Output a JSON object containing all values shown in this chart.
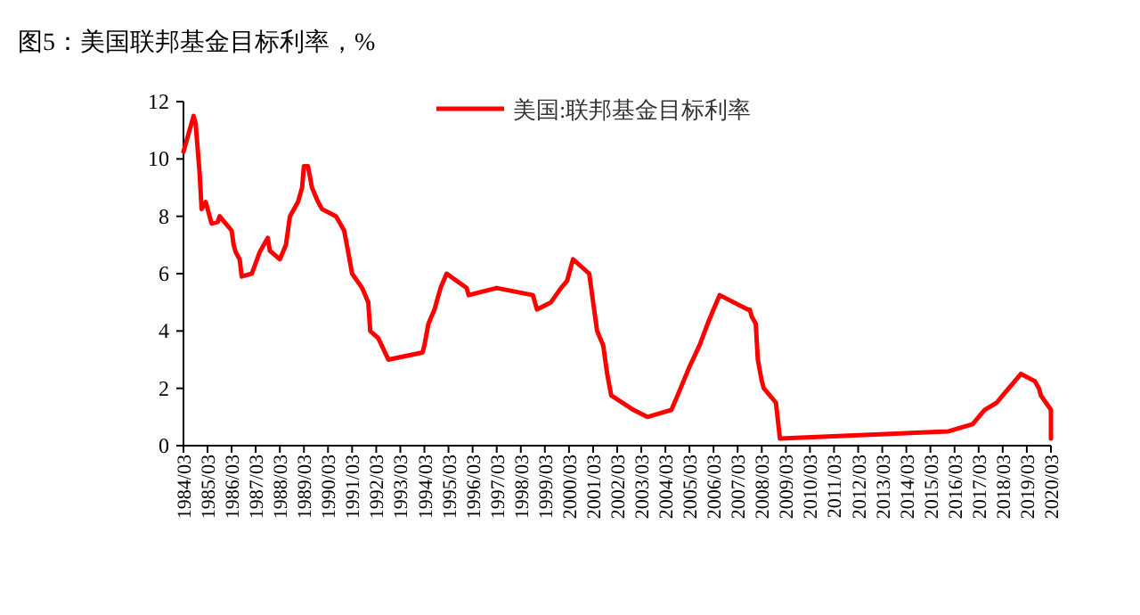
{
  "chart_data": {
    "type": "line",
    "title": "图5：美国联邦基金目标利率，%",
    "series": [
      {
        "name": "美国:联邦基金目标利率",
        "color": "#ff0000",
        "x": [
          "1984-03",
          "1984-08",
          "1984-09",
          "1984-11",
          "1984-12",
          "1985-02",
          "1985-05",
          "1985-08",
          "1985-09",
          "1986-03",
          "1986-04",
          "1986-05",
          "1986-07",
          "1986-08",
          "1987-01",
          "1987-05",
          "1987-09",
          "1987-10",
          "1988-03",
          "1988-06",
          "1988-08",
          "1988-12",
          "1989-02",
          "1989-03",
          "1989-05",
          "1989-07",
          "1989-10",
          "1989-12",
          "1990-07",
          "1990-11",
          "1991-01",
          "1991-03",
          "1991-08",
          "1991-11",
          "1991-12",
          "1992-04",
          "1992-09",
          "1994-02",
          "1994-03",
          "1994-05",
          "1994-08",
          "1994-11",
          "1995-02",
          "1995-07",
          "1995-12",
          "1996-01",
          "1997-03",
          "1998-09",
          "1998-11",
          "1999-06",
          "1999-11",
          "2000-02",
          "2000-05",
          "2001-01",
          "2001-05",
          "2001-08",
          "2001-10",
          "2001-12",
          "2002-11",
          "2003-06",
          "2004-06",
          "2004-09",
          "2004-12",
          "2005-03",
          "2005-08",
          "2005-12",
          "2006-03",
          "2006-06",
          "2007-08",
          "2007-09",
          "2007-10",
          "2007-12",
          "2008-01",
          "2008-03",
          "2008-04",
          "2008-10",
          "2008-12",
          "2015-12",
          "2016-12",
          "2017-03",
          "2017-06",
          "2017-12",
          "2018-03",
          "2018-06",
          "2018-09",
          "2018-12",
          "2019-07",
          "2019-09",
          "2019-10",
          "2020-03",
          "2020-03"
        ],
        "values": [
          10.25,
          11.5,
          11.25,
          9.5,
          8.25,
          8.5,
          7.75,
          7.8,
          8.0,
          7.5,
          7.0,
          6.75,
          6.5,
          5.9,
          6.0,
          6.75,
          7.25,
          6.8,
          6.5,
          7.0,
          8.0,
          8.5,
          9.0,
          9.75,
          9.75,
          9.0,
          8.5,
          8.25,
          8.0,
          7.5,
          6.75,
          6.0,
          5.5,
          5.0,
          4.0,
          3.75,
          3.0,
          3.25,
          3.5,
          4.25,
          4.75,
          5.5,
          6.0,
          5.75,
          5.5,
          5.25,
          5.5,
          5.25,
          4.75,
          5.0,
          5.5,
          5.75,
          6.5,
          6.0,
          4.0,
          3.5,
          2.5,
          1.75,
          1.25,
          1.0,
          1.25,
          1.75,
          2.25,
          2.75,
          3.5,
          4.25,
          4.75,
          5.25,
          4.75,
          4.75,
          4.5,
          4.25,
          3.0,
          2.25,
          2.0,
          1.5,
          0.25,
          0.5,
          0.75,
          1.0,
          1.25,
          1.5,
          1.75,
          2.0,
          2.25,
          2.5,
          2.25,
          2.0,
          1.75,
          1.25,
          0.25
        ]
      }
    ],
    "xlim": [
      "1984-03",
      "2020-03"
    ],
    "xticks": [
      {
        "value": "1984-03",
        "label": "1984/03"
      },
      {
        "value": "1985-03",
        "label": "1985/03"
      },
      {
        "value": "1986-03",
        "label": "1986/03"
      },
      {
        "value": "1987-03",
        "label": "1987/03"
      },
      {
        "value": "1988-03",
        "label": "1988/03"
      },
      {
        "value": "1989-03",
        "label": "1989/03"
      },
      {
        "value": "1990-03",
        "label": "1990/03"
      },
      {
        "value": "1991-03",
        "label": "1991/03"
      },
      {
        "value": "1992-03",
        "label": "1992/03"
      },
      {
        "value": "1993-03",
        "label": "1993/03"
      },
      {
        "value": "1994-03",
        "label": "1994/03"
      },
      {
        "value": "1995-03",
        "label": "1995/03"
      },
      {
        "value": "1996-03",
        "label": "1996/03"
      },
      {
        "value": "1997-03",
        "label": "1997/03"
      },
      {
        "value": "1998-03",
        "label": "1998/03"
      },
      {
        "value": "1999-03",
        "label": "1999/03"
      },
      {
        "value": "2000-03",
        "label": "2000/03"
      },
      {
        "value": "2001-03",
        "label": "2001/03"
      },
      {
        "value": "2002-03",
        "label": "2002/03"
      },
      {
        "value": "2003-03",
        "label": "2003/03"
      },
      {
        "value": "2004-03",
        "label": "2004/03"
      },
      {
        "value": "2005-03",
        "label": "2005/03"
      },
      {
        "value": "2006-03",
        "label": "2006/03"
      },
      {
        "value": "2007-03",
        "label": "2007/03"
      },
      {
        "value": "2008-03",
        "label": "2008/03"
      },
      {
        "value": "2009-03",
        "label": "2009/03"
      },
      {
        "value": "2010-03",
        "label": "2010/03"
      },
      {
        "value": "2011-03",
        "label": "2011/03"
      },
      {
        "value": "2012-03",
        "label": "2012/03"
      },
      {
        "value": "2013-03",
        "label": "2013/03"
      },
      {
        "value": "2014-03",
        "label": "2014/03"
      },
      {
        "value": "2015-03",
        "label": "2015/03"
      },
      {
        "value": "2016-03",
        "label": "2016/03"
      },
      {
        "value": "2017-03",
        "label": "2017/03"
      },
      {
        "value": "2018-03",
        "label": "2018/03"
      },
      {
        "value": "2019-03",
        "label": "2019/03"
      },
      {
        "value": "2020-03",
        "label": "2020/03"
      }
    ],
    "ylim": [
      0,
      12
    ],
    "yticks": [
      0,
      2,
      4,
      6,
      8,
      10,
      12
    ],
    "grid": false,
    "legend": "top",
    "marker": "none",
    "line_style": "solid"
  }
}
